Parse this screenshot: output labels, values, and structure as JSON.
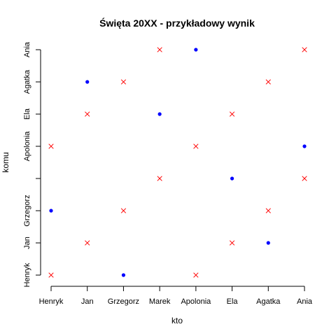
{
  "chart_data": {
    "type": "scatter",
    "title": "Święta 20XX - przykładowy wynik",
    "xlabel": "kto",
    "ylabel": "komu",
    "x_categories": [
      "Henryk",
      "Jan",
      "Grzegorz",
      "Marek",
      "Apolonia",
      "Ela",
      "Agatka",
      "Ania"
    ],
    "y_tick_labels": [
      "Henryk",
      "Jan",
      "Grzegorz",
      "",
      "Apolonia",
      "Ela",
      "Agatka",
      "Ania"
    ],
    "xlim": [
      1,
      8
    ],
    "ylim": [
      1,
      8
    ],
    "grid": false,
    "colors": {
      "dot": "#0000ff",
      "cross": "#ff0000"
    },
    "series": [
      {
        "marker": "dot",
        "points": [
          {
            "x": 1,
            "y": 3
          },
          {
            "x": 2,
            "y": 7
          },
          {
            "x": 3,
            "y": 1
          },
          {
            "x": 4,
            "y": 6
          },
          {
            "x": 5,
            "y": 8
          },
          {
            "x": 6,
            "y": 4
          },
          {
            "x": 7,
            "y": 2
          },
          {
            "x": 8,
            "y": 5
          }
        ]
      },
      {
        "marker": "cross",
        "points": [
          {
            "x": 1,
            "y": 1
          },
          {
            "x": 1,
            "y": 5
          },
          {
            "x": 2,
            "y": 2
          },
          {
            "x": 2,
            "y": 6
          },
          {
            "x": 3,
            "y": 3
          },
          {
            "x": 3,
            "y": 7
          },
          {
            "x": 4,
            "y": 4
          },
          {
            "x": 4,
            "y": 8
          },
          {
            "x": 5,
            "y": 1
          },
          {
            "x": 5,
            "y": 5
          },
          {
            "x": 6,
            "y": 2
          },
          {
            "x": 6,
            "y": 6
          },
          {
            "x": 7,
            "y": 3
          },
          {
            "x": 7,
            "y": 7
          },
          {
            "x": 8,
            "y": 4
          },
          {
            "x": 8,
            "y": 8
          }
        ]
      }
    ]
  }
}
